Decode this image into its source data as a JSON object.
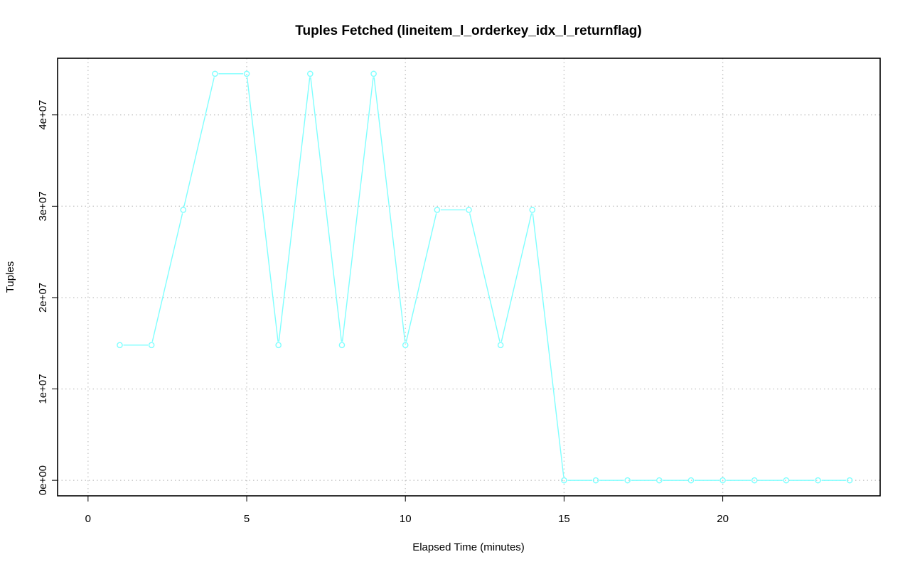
{
  "chart_data": {
    "type": "line",
    "title": "Tuples Fetched (lineitem_l_orderkey_idx_l_returnflag)",
    "xlabel": "Elapsed Time (minutes)",
    "ylabel": "Tuples",
    "xlim": [
      -0.96,
      24.96
    ],
    "ylim": [
      -1700000,
      46200000
    ],
    "x_ticks": [
      0,
      5,
      10,
      15,
      20
    ],
    "x_tick_labels": [
      "0",
      "5",
      "10",
      "15",
      "20"
    ],
    "y_ticks": [
      0,
      10000000,
      20000000,
      30000000,
      40000000
    ],
    "y_tick_labels": [
      "0e+00",
      "1e+07",
      "2e+07",
      "3e+07",
      "4e+07"
    ],
    "grid": true,
    "legend": "none",
    "series": [
      {
        "color": "#7fffff",
        "marker": "open-circle",
        "x": [
          1,
          2,
          3,
          4,
          5,
          6,
          7,
          8,
          9,
          10,
          11,
          12,
          13,
          14,
          15,
          16,
          17,
          18,
          19,
          20,
          21,
          22,
          23,
          24
        ],
        "values": [
          14800000,
          14800000,
          29600000,
          44500000,
          44500000,
          14800000,
          44500000,
          14800000,
          44500000,
          14800000,
          29600000,
          29600000,
          14800000,
          29600000,
          0,
          0,
          0,
          0,
          0,
          0,
          0,
          0,
          0,
          0
        ]
      }
    ]
  }
}
